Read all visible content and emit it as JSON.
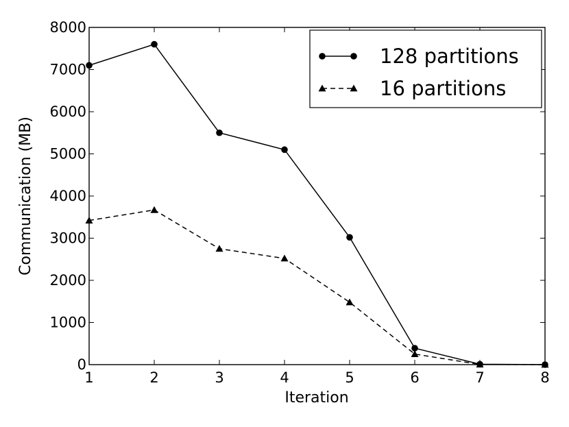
{
  "chart_data": {
    "type": "line",
    "title": "",
    "xlabel": "Iteration",
    "ylabel": "Communication (MB)",
    "xlim": [
      1,
      8
    ],
    "ylim": [
      0,
      8000
    ],
    "x_ticks": [
      1,
      2,
      3,
      4,
      5,
      6,
      7,
      8
    ],
    "x_tick_labels": [
      "1",
      "2",
      "3",
      "4",
      "5",
      "6",
      "7",
      "8"
    ],
    "y_ticks": [
      0,
      1000,
      2000,
      3000,
      4000,
      5000,
      6000,
      7000,
      8000
    ],
    "y_tick_labels": [
      "0",
      "1000",
      "2000",
      "3000",
      "4000",
      "5000",
      "6000",
      "7000",
      "8000"
    ],
    "grid": false,
    "legend_position": "top-right",
    "series": [
      {
        "name": "128 partitions",
        "marker": "circle",
        "line_style": "solid",
        "color": "#000000",
        "x": [
          1,
          2,
          3,
          4,
          5,
          6,
          7,
          8
        ],
        "values": [
          7100,
          7600,
          5500,
          5100,
          3020,
          390,
          10,
          0
        ]
      },
      {
        "name": "16 partitions",
        "marker": "triangle",
        "line_style": "dashed",
        "color": "#000000",
        "x": [
          1,
          2,
          3,
          4,
          5,
          6,
          7,
          8
        ],
        "values": [
          3420,
          3670,
          2750,
          2520,
          1480,
          250,
          5,
          0
        ]
      }
    ]
  }
}
